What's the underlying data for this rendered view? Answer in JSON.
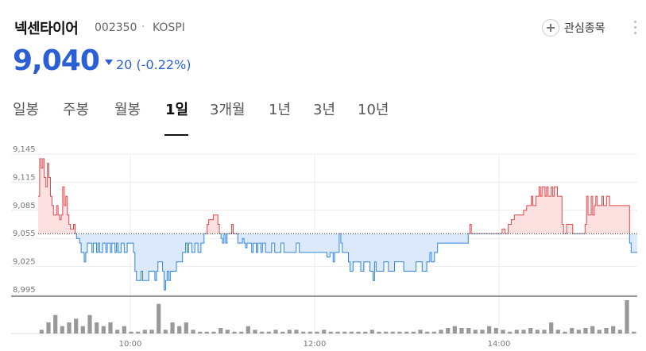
{
  "stock": {
    "name": "넥센타이어",
    "code": "002350",
    "separator": "·",
    "market": "KOSPI",
    "favorite_label": "관심종목",
    "price": "9,040",
    "change": "20",
    "change_pct": "(-0.22%)"
  },
  "tabs": [
    {
      "label": "일봉",
      "active": false
    },
    {
      "label": "주봉",
      "active": false
    },
    {
      "label": "월봉",
      "active": false
    },
    {
      "label": "1일",
      "active": true
    },
    {
      "label": "3개월",
      "active": false
    },
    {
      "label": "1년",
      "active": false
    },
    {
      "label": "3년",
      "active": false
    },
    {
      "label": "10년",
      "active": false
    }
  ],
  "colors": {
    "up": "#e0474c",
    "up_fill": "#fde0e0",
    "down": "#2f86dd",
    "down_fill": "#dce9fb",
    "accent": "#2a5fd6",
    "volume": "#999999"
  },
  "chart_data": {
    "type": "line",
    "title": "",
    "baseline": 9060,
    "ylim": [
      8995,
      9145
    ],
    "y_ticks": [
      "9,145",
      "9,115",
      "9,085",
      "9,055",
      "9,025",
      "8,995"
    ],
    "y_tick_values": [
      9145,
      9115,
      9085,
      9055,
      9025,
      8995
    ],
    "x_ticks": [
      "10:00",
      "12:00",
      "14:00"
    ],
    "x_tick_minutes": [
      60,
      180,
      300
    ],
    "x_range_minutes": [
      0,
      390
    ],
    "series": [
      {
        "points": [
          [
            0,
            9100
          ],
          [
            1,
            9140
          ],
          [
            2,
            9130
          ],
          [
            3,
            9140
          ],
          [
            4,
            9120
          ],
          [
            5,
            9110
          ],
          [
            6,
            9135
          ],
          [
            7,
            9120
          ],
          [
            8,
            9100
          ],
          [
            9,
            9090
          ],
          [
            10,
            9080
          ],
          [
            11,
            9080
          ],
          [
            12,
            9090
          ],
          [
            13,
            9080
          ],
          [
            14,
            9075
          ],
          [
            15,
            9080
          ],
          [
            16,
            9110
          ],
          [
            17,
            9090
          ],
          [
            18,
            9100
          ],
          [
            19,
            9080
          ],
          [
            20,
            9070
          ],
          [
            21,
            9065
          ],
          [
            22,
            9065
          ],
          [
            23,
            9070
          ],
          [
            24,
            9060
          ],
          [
            25,
            9055
          ],
          [
            27,
            9050
          ],
          [
            28,
            9040
          ],
          [
            29,
            9040
          ],
          [
            30,
            9030
          ],
          [
            31,
            9040
          ],
          [
            32,
            9050
          ],
          [
            34,
            9050
          ],
          [
            35,
            9040
          ],
          [
            36,
            9050
          ],
          [
            38,
            9040
          ],
          [
            39,
            9050
          ],
          [
            40,
            9040
          ],
          [
            42,
            9050
          ],
          [
            44,
            9040
          ],
          [
            45,
            9050
          ],
          [
            47,
            9040
          ],
          [
            48,
            9050
          ],
          [
            50,
            9040
          ],
          [
            51,
            9050
          ],
          [
            52,
            9040
          ],
          [
            54,
            9050
          ],
          [
            56,
            9040
          ],
          [
            58,
            9050
          ],
          [
            60,
            9050
          ],
          [
            62,
            9040
          ],
          [
            63,
            9020
          ],
          [
            64,
            9010
          ],
          [
            66,
            9010
          ],
          [
            67,
            9020
          ],
          [
            68,
            9010
          ],
          [
            70,
            9010
          ],
          [
            72,
            9020
          ],
          [
            74,
            9020
          ],
          [
            76,
            9010
          ],
          [
            77,
            9020
          ],
          [
            78,
            9030
          ],
          [
            80,
            9030
          ],
          [
            81,
            9020
          ],
          [
            82,
            9000
          ],
          [
            83,
            9010
          ],
          [
            84,
            9020
          ],
          [
            85,
            9010
          ],
          [
            86,
            9020
          ],
          [
            88,
            9020
          ],
          [
            90,
            9030
          ],
          [
            92,
            9030
          ],
          [
            94,
            9040
          ],
          [
            96,
            9050
          ],
          [
            97,
            9040
          ],
          [
            98,
            9050
          ],
          [
            100,
            9040
          ],
          [
            102,
            9050
          ],
          [
            104,
            9040
          ],
          [
            106,
            9050
          ],
          [
            108,
            9060
          ],
          [
            110,
            9070
          ],
          [
            111,
            9075
          ],
          [
            112,
            9075
          ],
          [
            114,
            9080
          ],
          [
            116,
            9080
          ],
          [
            117,
            9070
          ],
          [
            118,
            9060
          ],
          [
            119,
            9055
          ],
          [
            120,
            9050
          ],
          [
            121,
            9060
          ],
          [
            122,
            9050
          ],
          [
            123,
            9060
          ],
          [
            125,
            9060
          ],
          [
            126,
            9070
          ],
          [
            127,
            9060
          ],
          [
            128,
            9060
          ],
          [
            129,
            9060
          ],
          [
            130,
            9050
          ],
          [
            132,
            9050
          ],
          [
            133,
            9055
          ],
          [
            134,
            9050
          ],
          [
            135,
            9045
          ],
          [
            136,
            9050
          ],
          [
            138,
            9050
          ],
          [
            139,
            9040
          ],
          [
            140,
            9050
          ],
          [
            142,
            9040
          ],
          [
            143,
            9050
          ],
          [
            145,
            9040
          ],
          [
            146,
            9050
          ],
          [
            148,
            9040
          ],
          [
            150,
            9040
          ],
          [
            152,
            9050
          ],
          [
            154,
            9040
          ],
          [
            156,
            9040
          ],
          [
            158,
            9050
          ],
          [
            160,
            9040
          ],
          [
            162,
            9040
          ],
          [
            164,
            9040
          ],
          [
            166,
            9040
          ],
          [
            168,
            9050
          ],
          [
            170,
            9040
          ],
          [
            175,
            9040
          ],
          [
            180,
            9040
          ],
          [
            185,
            9040
          ],
          [
            188,
            9035
          ],
          [
            190,
            9040
          ],
          [
            192,
            9030
          ],
          [
            193,
            9040
          ],
          [
            195,
            9040
          ],
          [
            196,
            9060
          ],
          [
            197,
            9050
          ],
          [
            198,
            9040
          ],
          [
            200,
            9040
          ],
          [
            202,
            9030
          ],
          [
            203,
            9020
          ],
          [
            205,
            9030
          ],
          [
            208,
            9030
          ],
          [
            210,
            9020
          ],
          [
            212,
            9030
          ],
          [
            214,
            9030
          ],
          [
            216,
            9020
          ],
          [
            218,
            9010
          ],
          [
            219,
            9030
          ],
          [
            220,
            9020
          ],
          [
            222,
            9020
          ],
          [
            225,
            9030
          ],
          [
            228,
            9020
          ],
          [
            230,
            9020
          ],
          [
            232,
            9030
          ],
          [
            236,
            9030
          ],
          [
            238,
            9020
          ],
          [
            240,
            9020
          ],
          [
            243,
            9020
          ],
          [
            246,
            9030
          ],
          [
            248,
            9030
          ],
          [
            250,
            9020
          ],
          [
            253,
            9030
          ],
          [
            255,
            9040
          ],
          [
            256,
            9030
          ],
          [
            258,
            9040
          ],
          [
            260,
            9050
          ],
          [
            265,
            9050
          ],
          [
            270,
            9050
          ],
          [
            275,
            9050
          ],
          [
            280,
            9060
          ],
          [
            281,
            9070
          ],
          [
            282,
            9060
          ],
          [
            285,
            9060
          ],
          [
            290,
            9060
          ],
          [
            295,
            9060
          ],
          [
            300,
            9060
          ],
          [
            302,
            9065
          ],
          [
            304,
            9060
          ],
          [
            306,
            9070
          ],
          [
            308,
            9075
          ],
          [
            309,
            9075
          ],
          [
            310,
            9080
          ],
          [
            313,
            9080
          ],
          [
            316,
            9085
          ],
          [
            317,
            9085
          ],
          [
            318,
            9090
          ],
          [
            320,
            9090
          ],
          [
            321,
            9100
          ],
          [
            322,
            9090
          ],
          [
            324,
            9100
          ],
          [
            326,
            9110
          ],
          [
            327,
            9100
          ],
          [
            328,
            9110
          ],
          [
            330,
            9100
          ],
          [
            331,
            9110
          ],
          [
            332,
            9100
          ],
          [
            334,
            9110
          ],
          [
            335,
            9100
          ],
          [
            336,
            9110
          ],
          [
            338,
            9100
          ],
          [
            340,
            9100
          ],
          [
            341,
            9070
          ],
          [
            342,
            9060
          ],
          [
            344,
            9070
          ],
          [
            346,
            9070
          ],
          [
            348,
            9060
          ],
          [
            350,
            9060
          ],
          [
            352,
            9060
          ],
          [
            354,
            9060
          ],
          [
            356,
            9070
          ],
          [
            357,
            9100
          ],
          [
            358,
            9080
          ],
          [
            360,
            9100
          ],
          [
            361,
            9080
          ],
          [
            362,
            9090
          ],
          [
            363,
            9100
          ],
          [
            364,
            9090
          ],
          [
            366,
            9090
          ],
          [
            367,
            9100
          ],
          [
            368,
            9090
          ],
          [
            370,
            9100
          ],
          [
            372,
            9090
          ],
          [
            374,
            9090
          ],
          [
            376,
            9090
          ],
          [
            378,
            9090
          ],
          [
            380,
            9090
          ],
          [
            382,
            9090
          ],
          [
            384,
            9090
          ],
          [
            385,
            9050
          ],
          [
            386,
            9040
          ],
          [
            388,
            9040
          ],
          [
            390,
            9040
          ]
        ]
      }
    ],
    "volume": [
      1,
      3,
      5,
      2,
      3,
      4,
      2,
      5,
      3,
      2,
      3,
      1,
      2,
      0.5,
      0.5,
      1,
      1,
      8,
      1,
      3,
      2,
      3,
      1,
      0.5,
      0.5,
      0.5,
      1.5,
      1,
      0.5,
      0.5,
      2,
      1,
      0.5,
      0.5,
      1,
      0.5,
      1,
      1,
      0.5,
      0.5,
      0.5,
      1,
      0.5,
      0.5,
      0.5,
      0.5,
      0.5,
      0.5,
      1,
      0.5,
      0.5,
      0.5,
      0.5,
      0.5,
      0.5,
      1,
      0.5,
      0.5,
      1,
      1.5,
      2,
      1.5,
      1.5,
      1,
      1,
      2,
      1.5,
      1,
      0.5,
      1,
      1,
      1.5,
      1,
      1,
      3,
      1,
      0.5,
      1.5,
      1,
      1.5,
      2,
      1,
      1.5,
      2,
      1,
      9,
      0.5
    ]
  }
}
